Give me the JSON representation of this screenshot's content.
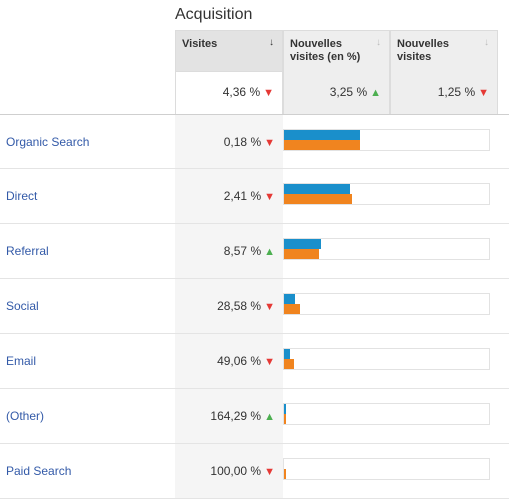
{
  "section_title": "Acquisition",
  "columns": [
    {
      "label": "Visites",
      "total": "4,36 %",
      "trend": "down",
      "active": true
    },
    {
      "label": "Nouvelles visites (en %)",
      "total": "3,25 %",
      "trend": "up",
      "active": false
    },
    {
      "label": "Nouvelles visites",
      "total": "1,25 %",
      "trend": "down",
      "active": false
    }
  ],
  "colors": {
    "series_1": "#1a8fcb",
    "series_2": "#f0841f",
    "trend_down": "#e53935",
    "trend_up": "#4caf50",
    "link": "#335aa8"
  },
  "rows": [
    {
      "label": "Organic Search",
      "value": "0,18 %",
      "trend": "down",
      "bar1": 0.37,
      "bar2": 0.37
    },
    {
      "label": "Direct",
      "value": "2,41 %",
      "trend": "down",
      "bar1": 0.32,
      "bar2": 0.33
    },
    {
      "label": "Referral",
      "value": "8,57 %",
      "trend": "up",
      "bar1": 0.18,
      "bar2": 0.17
    },
    {
      "label": "Social",
      "value": "28,58 %",
      "trend": "down",
      "bar1": 0.055,
      "bar2": 0.08
    },
    {
      "label": "Email",
      "value": "49,06 %",
      "trend": "down",
      "bar1": 0.03,
      "bar2": 0.05
    },
    {
      "label": "(Other)",
      "value": "164,29 %",
      "trend": "up",
      "bar1": 0.005,
      "bar2": 0.005
    },
    {
      "label": "Paid Search",
      "value": "100,00 %",
      "trend": "down",
      "bar1": 0.0,
      "bar2": 0.005
    }
  ]
}
